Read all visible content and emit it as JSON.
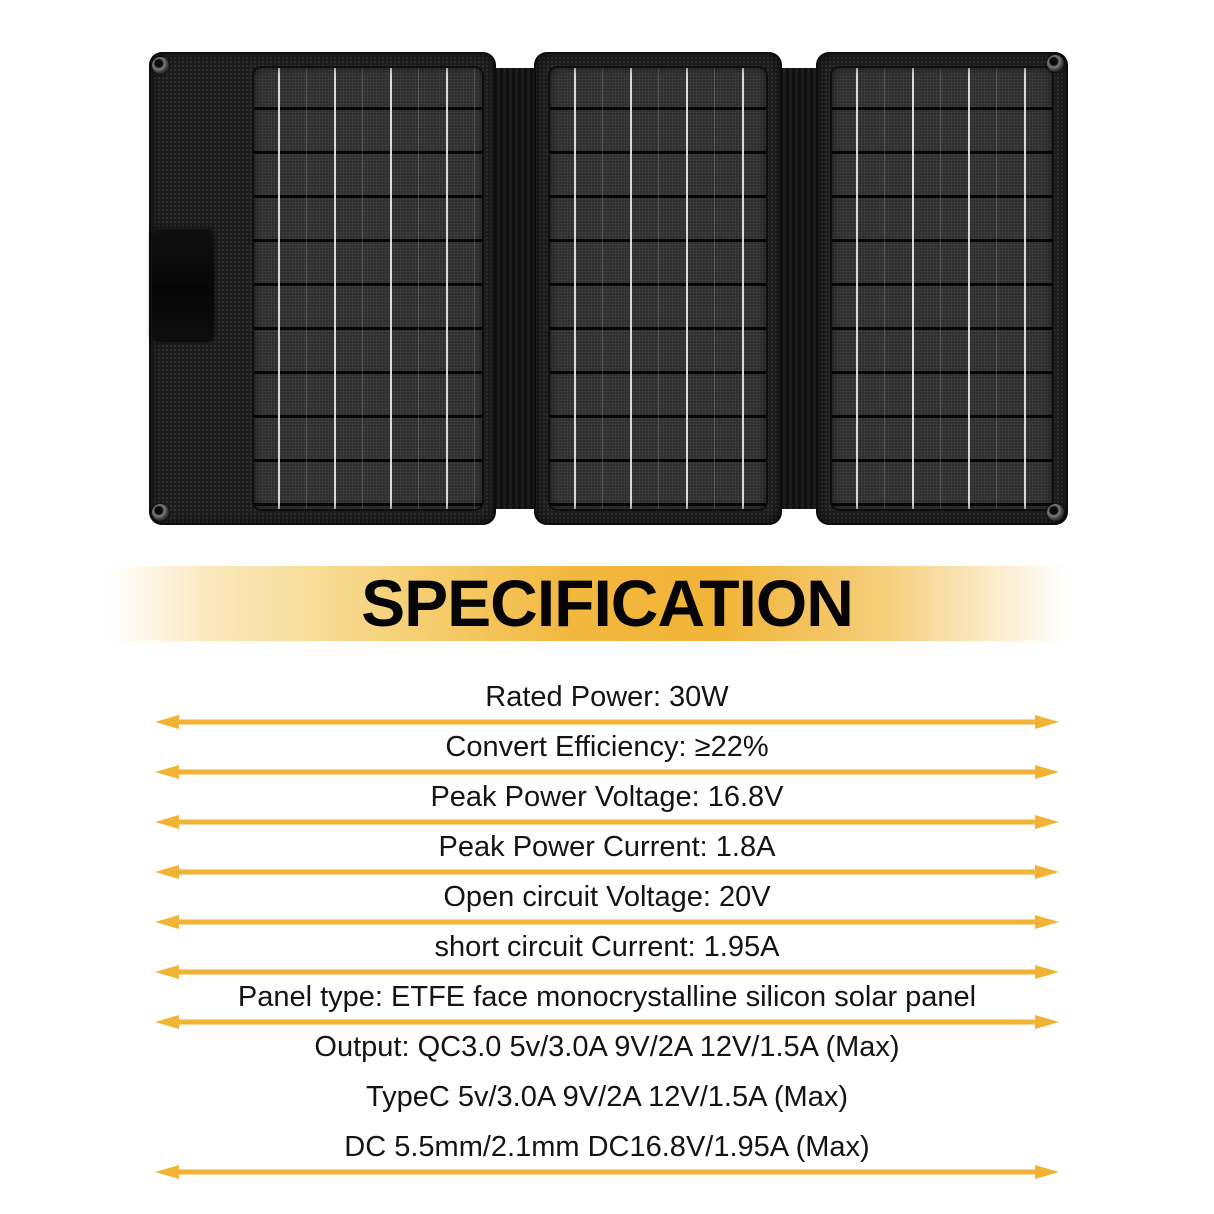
{
  "hero": {
    "type": "foldable-solar-panel-photo",
    "panel_count": 3
  },
  "heading": {
    "title": "SPECIFICATION"
  },
  "specs": {
    "rows": [
      {
        "text": "Rated Power: 30W"
      },
      {
        "text": "Convert Efficiency: ≥22%"
      },
      {
        "text": "Peak Power Voltage: 16.8V"
      },
      {
        "text": "Peak Power Current: 1.8A"
      },
      {
        "text": "Open circuit Voltage: 20V"
      },
      {
        "text": "short circuit Current: 1.95A"
      },
      {
        "text": "Panel type: ETFE face monocrystalline silicon solar panel"
      },
      {
        "text": "Output: QC3.0 5v/3.0A 9V/2A 12V/1.5A (Max)"
      },
      {
        "text": "TypeC 5v/3.0A 9V/2A 12V/1.5A (Max)"
      },
      {
        "text": "DC 5.5mm/2.1mm DC16.8V/1.95A (Max)"
      }
    ]
  },
  "colors": {
    "accent_gold": "#F2B233",
    "banner_gold": "#F1B437",
    "panel_black": "#1D1D1D"
  }
}
